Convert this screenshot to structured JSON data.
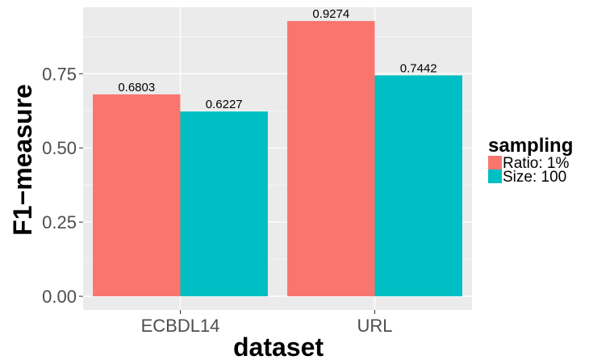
{
  "chart_data": {
    "type": "bar",
    "title": "",
    "xlabel": "dataset",
    "ylabel": "F1−measure",
    "categories": [
      "ECBDL14",
      "URL"
    ],
    "series": [
      {
        "name": "Ratio: 1%",
        "values": [
          0.6803,
          0.9274
        ],
        "labels": [
          "0.6803",
          "0.9274"
        ],
        "color": "#F8766D"
      },
      {
        "name": "Size: 100",
        "values": [
          0.6227,
          0.7442
        ],
        "labels": [
          "0.6227",
          "0.7442"
        ],
        "color": "#00BFC4"
      }
    ],
    "ylim": [
      -0.046,
      0.9738
    ],
    "yticks": [
      0,
      0.25,
      0.5,
      0.75
    ],
    "ytick_labels": [
      "0.00",
      "0.25",
      "0.50",
      "0.75"
    ],
    "grid": true,
    "panel_background": "#EBEBEB",
    "legend": {
      "title": "sampling",
      "position": "right"
    }
  }
}
